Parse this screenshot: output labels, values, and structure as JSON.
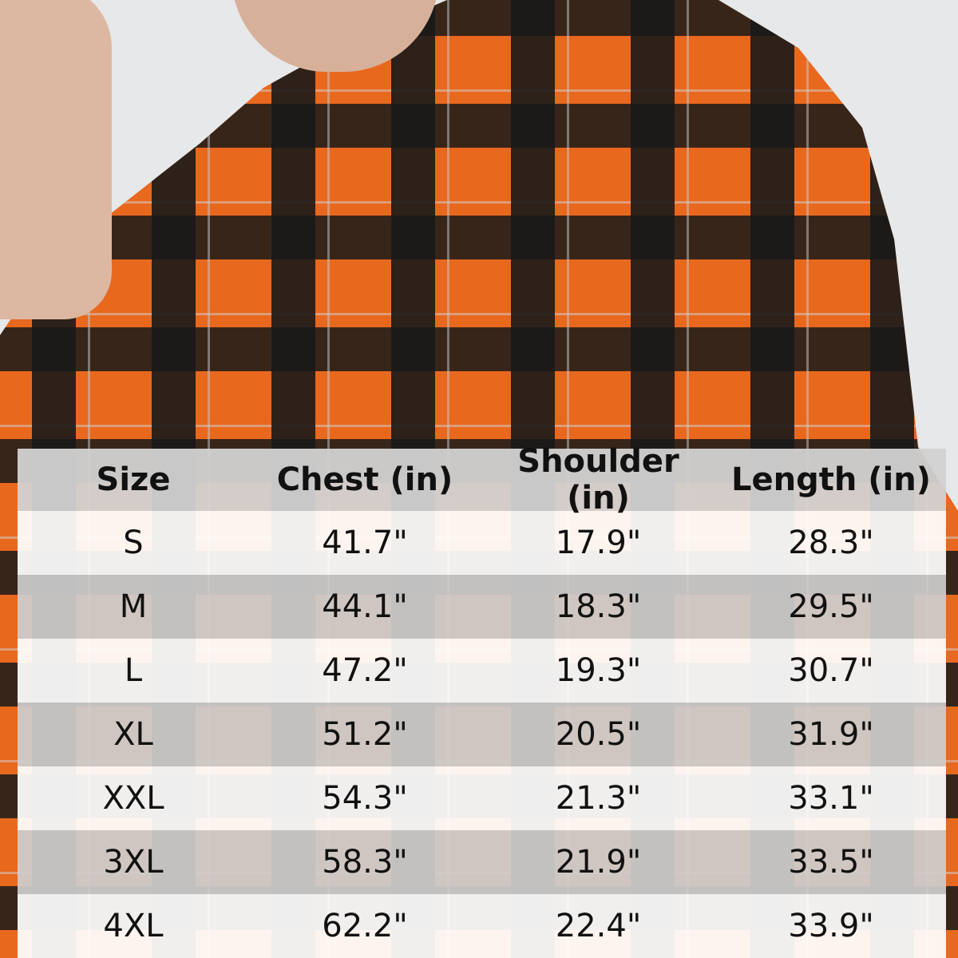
{
  "table": {
    "headers": [
      "Size",
      "Chest (in)",
      "Shoulder (in)",
      "Length (in)"
    ],
    "rows": [
      [
        "S",
        "41.7\"",
        "17.9\"",
        "28.3\""
      ],
      [
        "M",
        "44.1\"",
        "18.3\"",
        "29.5\""
      ],
      [
        "L",
        "47.2\"",
        "19.3\"",
        "30.7\""
      ],
      [
        "XL",
        "51.2\"",
        "20.5\"",
        "31.9\""
      ],
      [
        "XXL",
        "54.3\"",
        "21.3\"",
        "33.1\""
      ],
      [
        "3XL",
        "58.3\"",
        "21.9\"",
        "33.5\""
      ],
      [
        "4XL",
        "62.2\"",
        "22.4\"",
        "33.9\""
      ]
    ]
  },
  "colors": {
    "shirt_orange": "#e8681e",
    "plaid_black": "#191919",
    "background": "#e6e8e9"
  }
}
